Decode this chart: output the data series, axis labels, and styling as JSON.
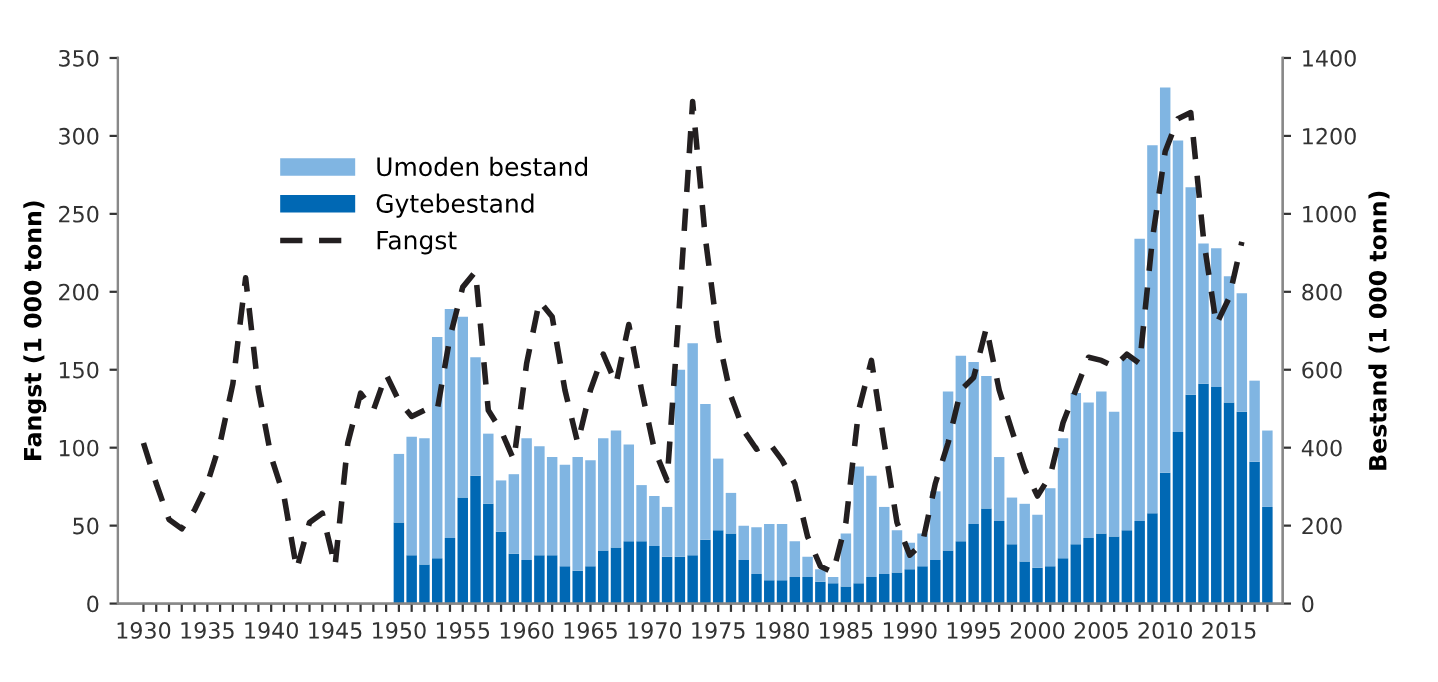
{
  "chart_data": {
    "type": "bar",
    "stacked": true,
    "ylabel": "Fangst (1 000 tonn)",
    "y2label": "Bestand (1 000 tonn)",
    "xlim": [
      1928,
      2019.2
    ],
    "xticks": [
      1930,
      {
        "value": 1931,
        "label": null
      },
      {
        "value": 1932,
        "label": null
      },
      {
        "value": 1933,
        "label": null
      },
      {
        "value": 1934,
        "label": null
      },
      1935,
      {
        "value": 1936,
        "label": null
      },
      {
        "value": 1937,
        "label": null
      },
      {
        "value": 1938,
        "label": null
      },
      {
        "value": 1939,
        "label": null
      },
      1940,
      {
        "value": 1941,
        "label": null
      },
      {
        "value": 1942,
        "label": null
      },
      {
        "value": 1943,
        "label": null
      },
      {
        "value": 1944,
        "label": null
      },
      1945,
      {
        "value": 1946,
        "label": null
      },
      {
        "value": 1947,
        "label": null
      },
      {
        "value": 1948,
        "label": null
      },
      {
        "value": 1949,
        "label": null
      },
      1950,
      {
        "value": 1951,
        "label": null
      },
      {
        "value": 1952,
        "label": null
      },
      {
        "value": 1953,
        "label": null
      },
      {
        "value": 1954,
        "label": null
      },
      1955,
      {
        "value": 1956,
        "label": null
      },
      {
        "value": 1957,
        "label": null
      },
      {
        "value": 1958,
        "label": null
      },
      {
        "value": 1959,
        "label": null
      },
      1960,
      {
        "value": 1961,
        "label": null
      },
      {
        "value": 1962,
        "label": null
      },
      {
        "value": 1963,
        "label": null
      },
      {
        "value": 1964,
        "label": null
      },
      1965,
      {
        "value": 1966,
        "label": null
      },
      {
        "value": 1967,
        "label": null
      },
      {
        "value": 1968,
        "label": null
      },
      {
        "value": 1969,
        "label": null
      },
      1970,
      {
        "value": 1971,
        "label": null
      },
      {
        "value": 1972,
        "label": null
      },
      {
        "value": 1973,
        "label": null
      },
      {
        "value": 1974,
        "label": null
      },
      1975,
      {
        "value": 1976,
        "label": null
      },
      {
        "value": 1977,
        "label": null
      },
      {
        "value": 1978,
        "label": null
      },
      {
        "value": 1979,
        "label": null
      },
      1980,
      {
        "value": 1981,
        "label": null
      },
      {
        "value": 1982,
        "label": null
      },
      {
        "value": 1983,
        "label": null
      },
      {
        "value": 1984,
        "label": null
      },
      1985,
      {
        "value": 1986,
        "label": null
      },
      {
        "value": 1987,
        "label": null
      },
      {
        "value": 1988,
        "label": null
      },
      {
        "value": 1989,
        "label": null
      },
      1990,
      {
        "value": 1991,
        "label": null
      },
      {
        "value": 1992,
        "label": null
      },
      {
        "value": 1993,
        "label": null
      },
      {
        "value": 1994,
        "label": null
      },
      1995,
      {
        "value": 1996,
        "label": null
      },
      {
        "value": 1997,
        "label": null
      },
      {
        "value": 1998,
        "label": null
      },
      {
        "value": 1999,
        "label": null
      },
      2000,
      {
        "value": 2001,
        "label": null
      },
      {
        "value": 2002,
        "label": null
      },
      {
        "value": 2003,
        "label": null
      },
      {
        "value": 2004,
        "label": null
      },
      2005,
      {
        "value": 2006,
        "label": null
      },
      {
        "value": 2007,
        "label": null
      },
      {
        "value": 2008,
        "label": null
      },
      {
        "value": 2009,
        "label": null
      },
      2010,
      {
        "value": 2011,
        "label": null
      },
      {
        "value": 2012,
        "label": null
      },
      {
        "value": 2013,
        "label": null
      },
      {
        "value": 2014,
        "label": null
      },
      2015,
      {
        "value": 2016,
        "label": null
      },
      {
        "value": 2017,
        "label": null
      },
      {
        "value": 2018,
        "label": null
      }
    ],
    "ylim": [
      0,
      350
    ],
    "yticks": [
      0,
      50,
      100,
      150,
      200,
      250,
      300,
      350
    ],
    "y2lim": [
      0,
      1400
    ],
    "y2ticks": [
      0,
      200,
      400,
      600,
      800,
      1000,
      1200,
      1400
    ],
    "grid": false,
    "legend": "top left",
    "series": [
      {
        "name": "Gytebestand",
        "axis": "y2",
        "color": "#0068b4",
        "x": [
          1950,
          1951,
          1952,
          1953,
          1954,
          1955,
          1956,
          1957,
          1958,
          1959,
          1960,
          1961,
          1962,
          1963,
          1964,
          1965,
          1966,
          1967,
          1968,
          1969,
          1970,
          1971,
          1972,
          1973,
          1974,
          1975,
          1976,
          1977,
          1978,
          1979,
          1980,
          1981,
          1982,
          1983,
          1984,
          1985,
          1986,
          1987,
          1988,
          1989,
          1990,
          1991,
          1992,
          1993,
          1994,
          1995,
          1996,
          1997,
          1998,
          1999,
          2000,
          2001,
          2002,
          2003,
          2004,
          2005,
          2006,
          2007,
          2008,
          2009,
          2010,
          2011,
          2012,
          2013,
          2014,
          2015,
          2016,
          2017,
          2018
        ],
        "values": [
          208,
          124,
          100,
          116,
          168,
          272,
          328,
          256,
          184,
          128,
          112,
          124,
          124,
          96,
          84,
          96,
          136,
          144,
          160,
          160,
          148,
          120,
          120,
          124,
          164,
          188,
          180,
          112,
          76,
          60,
          60,
          68,
          68,
          56,
          52,
          44,
          52,
          68,
          76,
          80,
          88,
          96,
          112,
          136,
          160,
          204,
          244,
          212,
          152,
          108,
          92,
          96,
          116,
          152,
          168,
          180,
          172,
          188,
          212,
          232,
          336,
          440,
          536,
          564,
          556,
          516,
          492,
          364,
          248
        ]
      },
      {
        "name": "Umoden bestand",
        "axis": "y2",
        "color": "#80b5e2",
        "x": [
          1950,
          1951,
          1952,
          1953,
          1954,
          1955,
          1956,
          1957,
          1958,
          1959,
          1960,
          1961,
          1962,
          1963,
          1964,
          1965,
          1966,
          1967,
          1968,
          1969,
          1970,
          1971,
          1972,
          1973,
          1974,
          1975,
          1976,
          1977,
          1978,
          1979,
          1980,
          1981,
          1982,
          1983,
          1984,
          1985,
          1986,
          1987,
          1988,
          1989,
          1990,
          1991,
          1992,
          1993,
          1994,
          1995,
          1996,
          1997,
          1998,
          1999,
          2000,
          2001,
          2002,
          2003,
          2004,
          2005,
          2006,
          2007,
          2008,
          2009,
          2010,
          2011,
          2012,
          2013,
          2014,
          2015,
          2016,
          2017,
          2018
        ],
        "values": [
          176,
          304,
          324,
          568,
          588,
          464,
          304,
          180,
          132,
          204,
          312,
          280,
          252,
          260,
          292,
          272,
          288,
          300,
          248,
          144,
          128,
          128,
          480,
          544,
          348,
          184,
          104,
          88,
          120,
          144,
          144,
          92,
          52,
          32,
          16,
          136,
          300,
          260,
          172,
          108,
          68,
          84,
          176,
          408,
          476,
          416,
          340,
          164,
          120,
          148,
          136,
          200,
          308,
          388,
          348,
          364,
          320,
          440,
          724,
          944,
          988,
          748,
          532,
          360,
          356,
          324,
          304,
          208,
          196
        ]
      },
      {
        "name": "Fangst",
        "type": "line",
        "axis": "y",
        "color": "#231f20",
        "line_style": "dashed",
        "marker": "none",
        "x": [
          1930,
          1931,
          1932,
          1933,
          1934,
          1935,
          1936,
          1937,
          1938,
          1939,
          1940,
          1941,
          1942,
          1943,
          1944,
          1945,
          1946,
          1947,
          1948,
          1949,
          1950,
          1951,
          1952,
          1953,
          1954,
          1955,
          1956,
          1957,
          1958,
          1959,
          1960,
          1961,
          1962,
          1963,
          1964,
          1965,
          1966,
          1967,
          1968,
          1969,
          1970,
          1971,
          1972,
          1973,
          1974,
          1975,
          1976,
          1977,
          1978,
          1979,
          1980,
          1981,
          1982,
          1983,
          1984,
          1985,
          1986,
          1987,
          1988,
          1989,
          1990,
          1991,
          1992,
          1993,
          1994,
          1995,
          1996,
          1997,
          1998,
          1999,
          2000,
          2001,
          2002,
          2003,
          2004,
          2005,
          2006,
          2007,
          2008,
          2009,
          2010,
          2011,
          2012,
          2013,
          2014,
          2015,
          2016
        ],
        "values": [
          103,
          77,
          54,
          48,
          60,
          77,
          103,
          141,
          209,
          137,
          94,
          69,
          22,
          52,
          58,
          24,
          103,
          135,
          124,
          147,
          130,
          120,
          124,
          124,
          171,
          203,
          213,
          124,
          111,
          92,
          154,
          194,
          184,
          137,
          103,
          137,
          160,
          141,
          179,
          137,
          99,
          79,
          196,
          322,
          234,
          171,
          133,
          111,
          99,
          103,
          92,
          77,
          43,
          24,
          20,
          52,
          124,
          156,
          103,
          52,
          31,
          39,
          77,
          103,
          137,
          145,
          177,
          137,
          111,
          86,
          69,
          82,
          116,
          137,
          158,
          156,
          152,
          160,
          154,
          234,
          290,
          311,
          315,
          234,
          179,
          196,
          232
        ]
      }
    ]
  }
}
